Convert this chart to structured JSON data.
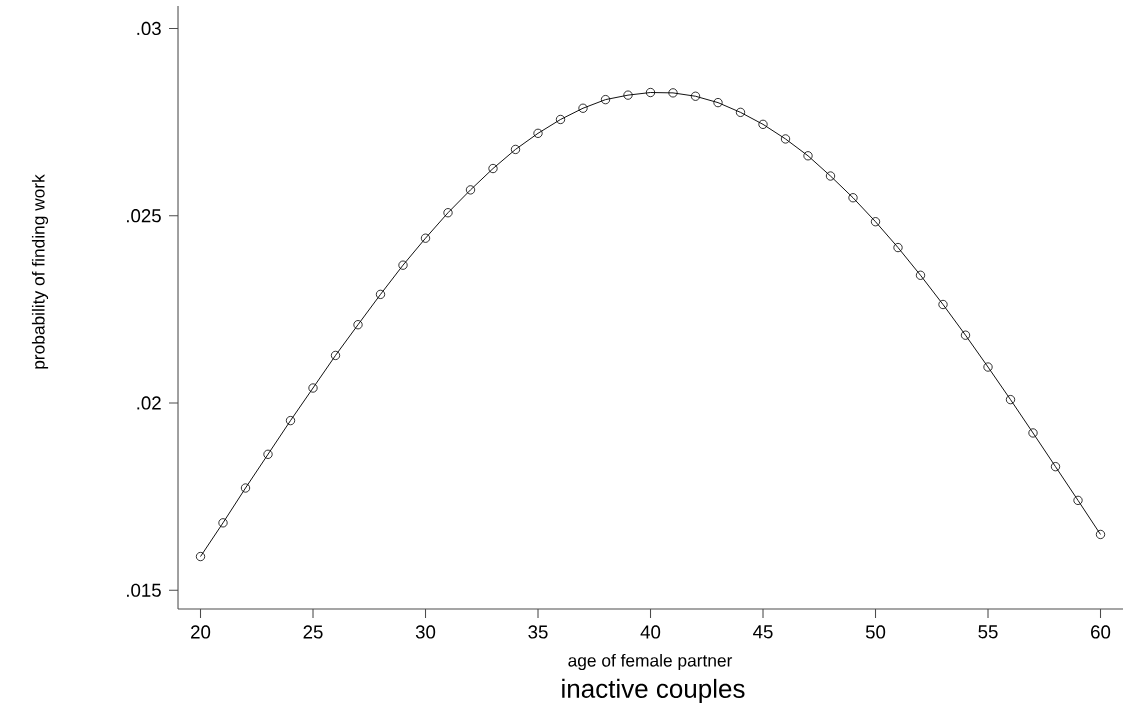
{
  "chart_data": {
    "type": "line",
    "title": "inactive couples",
    "xlabel": "age of female partner",
    "ylabel": "probability of finding work",
    "x": [
      20,
      21,
      22,
      23,
      24,
      25,
      26,
      27,
      28,
      29,
      30,
      31,
      32,
      33,
      34,
      35,
      36,
      37,
      38,
      39,
      40,
      41,
      42,
      43,
      44,
      45,
      46,
      47,
      48,
      49,
      50,
      51,
      52,
      53,
      54,
      55,
      56,
      57,
      58,
      59,
      60
    ],
    "values": [
      0.0159,
      0.0168,
      0.01773,
      0.01863,
      0.01953,
      0.0204,
      0.02127,
      0.02209,
      0.0229,
      0.02368,
      0.0244,
      0.02508,
      0.02569,
      0.02626,
      0.02677,
      0.0272,
      0.02757,
      0.02787,
      0.0281,
      0.02822,
      0.02829,
      0.02828,
      0.02819,
      0.02802,
      0.02776,
      0.02744,
      0.02705,
      0.0266,
      0.02606,
      0.02548,
      0.02484,
      0.02415,
      0.02341,
      0.02263,
      0.02181,
      0.02096,
      0.02009,
      0.0192,
      0.0183,
      0.0174,
      0.01649
    ],
    "color": "#000000",
    "xlim": [
      19,
      61
    ],
    "ylim": [
      0.0145,
      0.0306
    ],
    "xticks": [
      20,
      25,
      30,
      35,
      40,
      45,
      50,
      55,
      60
    ],
    "yticks": [
      {
        "value": 0.015,
        "label": ".015"
      },
      {
        "value": 0.02,
        "label": ".02"
      },
      {
        "value": 0.025,
        "label": ".025"
      },
      {
        "value": 0.03,
        "label": ".03"
      }
    ],
    "grid": false,
    "marker": "circle",
    "line_style": "solid"
  }
}
